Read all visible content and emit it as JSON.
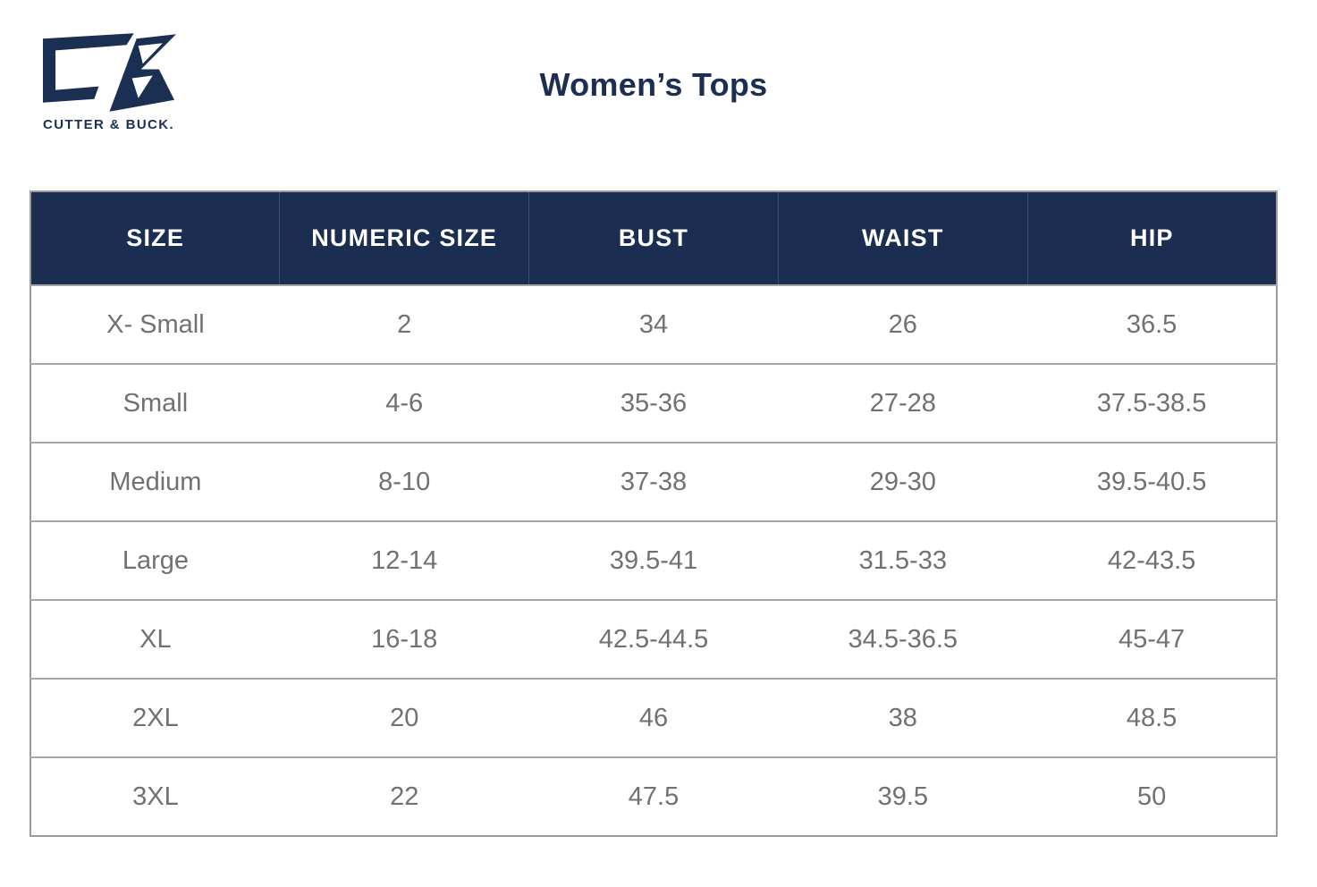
{
  "brand": {
    "name": "CUTTER & BUCK.",
    "logo_color": "#1b2f52"
  },
  "page": {
    "title": "Women’s Tops"
  },
  "colors": {
    "navy": "#1b2f52",
    "header_bg": "#1b2d50",
    "header_text": "#ffffff",
    "body_text": "#6f7174",
    "table_border": "#9b9b9b",
    "row_divider": "#a6a6a6",
    "background": "#ffffff"
  },
  "table": {
    "columns": [
      "SIZE",
      "NUMERIC SIZE",
      "BUST",
      "WAIST",
      "HIP"
    ],
    "rows": [
      [
        "X- Small",
        "2",
        "34",
        "26",
        "36.5"
      ],
      [
        "Small",
        "4-6",
        "35-36",
        "27-28",
        "37.5-38.5"
      ],
      [
        "Medium",
        "8-10",
        "37-38",
        "29-30",
        "39.5-40.5"
      ],
      [
        "Large",
        "12-14",
        "39.5-41",
        "31.5-33",
        "42-43.5"
      ],
      [
        "XL",
        "16-18",
        "42.5-44.5",
        "34.5-36.5",
        "45-47"
      ],
      [
        "2XL",
        "20",
        "46",
        "38",
        "48.5"
      ],
      [
        "3XL",
        "22",
        "47.5",
        "39.5",
        "50"
      ]
    ]
  },
  "chart_data": {
    "type": "table",
    "title": "Women’s Tops",
    "columns": [
      "SIZE",
      "NUMERIC SIZE",
      "BUST",
      "WAIST",
      "HIP"
    ],
    "rows": [
      [
        "X- Small",
        "2",
        "34",
        "26",
        "36.5"
      ],
      [
        "Small",
        "4-6",
        "35-36",
        "27-28",
        "37.5-38.5"
      ],
      [
        "Medium",
        "8-10",
        "37-38",
        "29-30",
        "39.5-40.5"
      ],
      [
        "Large",
        "12-14",
        "39.5-41",
        "31.5-33",
        "42-43.5"
      ],
      [
        "XL",
        "16-18",
        "42.5-44.5",
        "34.5-36.5",
        "45-47"
      ],
      [
        "2XL",
        "20",
        "46",
        "38",
        "48.5"
      ],
      [
        "3XL",
        "22",
        "47.5",
        "39.5",
        "50"
      ]
    ]
  }
}
